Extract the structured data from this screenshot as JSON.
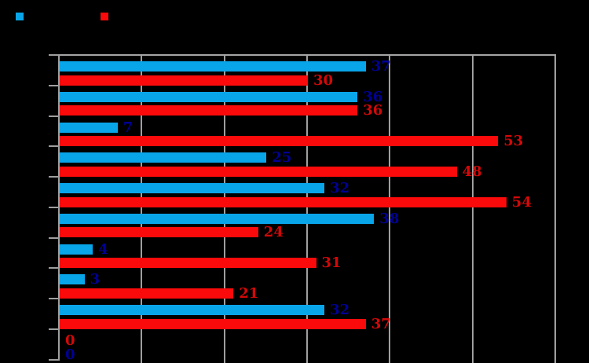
{
  "chart_data": {
    "type": "bar",
    "orientation": "horizontal",
    "n_groups": 10,
    "series": [
      {
        "name": "series-blue",
        "bar_color": "#09A5E9",
        "label_color": "#000096",
        "values": [
          37,
          36,
          7,
          25,
          32,
          38,
          4,
          3,
          32,
          0
        ]
      },
      {
        "name": "series-red",
        "bar_color": "#FA0A0A",
        "label_color": "#D40808",
        "values": [
          30,
          36,
          53,
          48,
          54,
          24,
          31,
          21,
          37,
          0
        ]
      }
    ],
    "xlim": [
      0,
      60
    ],
    "gridline_interval": 10,
    "grid_on": true,
    "grid_color": "#9f9f9f",
    "background_color": "#000000",
    "category_labels_visible": false,
    "x_tick_labels_visible": false,
    "swapped_label_rows": [
      9
    ],
    "legend": {
      "position": "top-left",
      "swatches": [
        {
          "series": "series-blue",
          "color": "#09A5E9"
        },
        {
          "series": "series-red",
          "color": "#FA0A0A"
        }
      ]
    }
  }
}
